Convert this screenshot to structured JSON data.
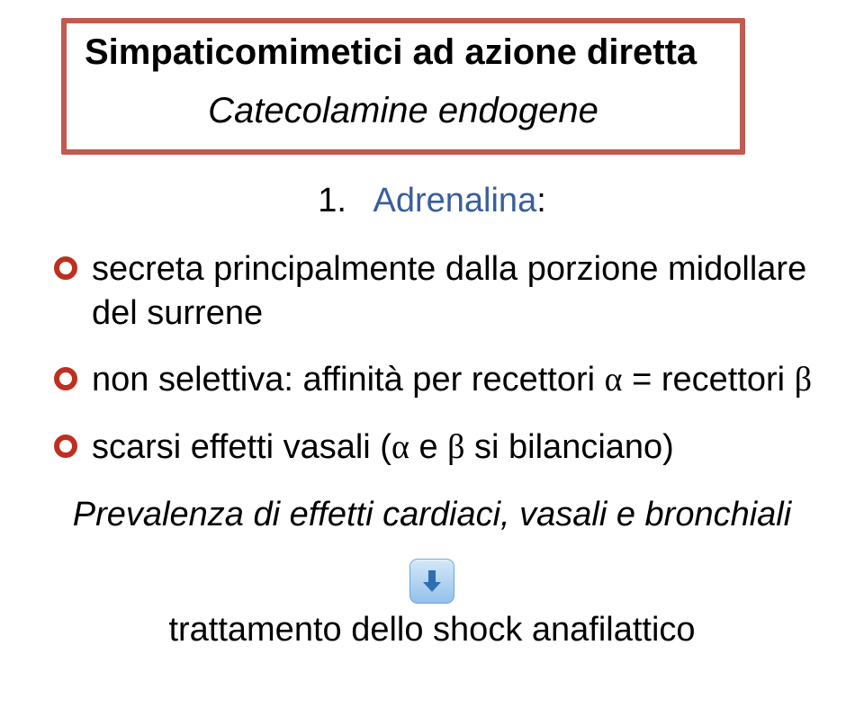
{
  "colors": {
    "box_border": "#c25a4f",
    "title_text": "#000000",
    "subtitle_accent": "#385e9d",
    "bullet_ring": "#bf2f1f",
    "arrow_bg_top": "#d4e8f9",
    "arrow_bg_bottom": "#93c1ea",
    "arrow_border": "#6ea6d9",
    "arrow_fill": "#2f6fb3",
    "text": "#000000"
  },
  "typography": {
    "title_fontsize": 40,
    "body_fontsize": 38
  },
  "title": {
    "line1": "Simpaticomimetici ad azione diretta",
    "line2": "Catecolamine endogene"
  },
  "subtitle": {
    "number": "1.",
    "label": "Adrenalina",
    "suffix": ":"
  },
  "bullets": [
    {
      "text": "secreta principalmente dalla porzione midollare del surrene"
    },
    {
      "text_parts": [
        "non selettiva: affinità per recettori ",
        "α",
        " = recettori ",
        "β"
      ]
    },
    {
      "text_parts": [
        "scarsi effetti vasali (",
        "α",
        " e ",
        "β",
        " si bilanciano)"
      ]
    }
  ],
  "summary_line": "Prevalenza di effetti cardiaci, vasali e bronchiali",
  "final_line": "trattamento dello shock anafilattico"
}
